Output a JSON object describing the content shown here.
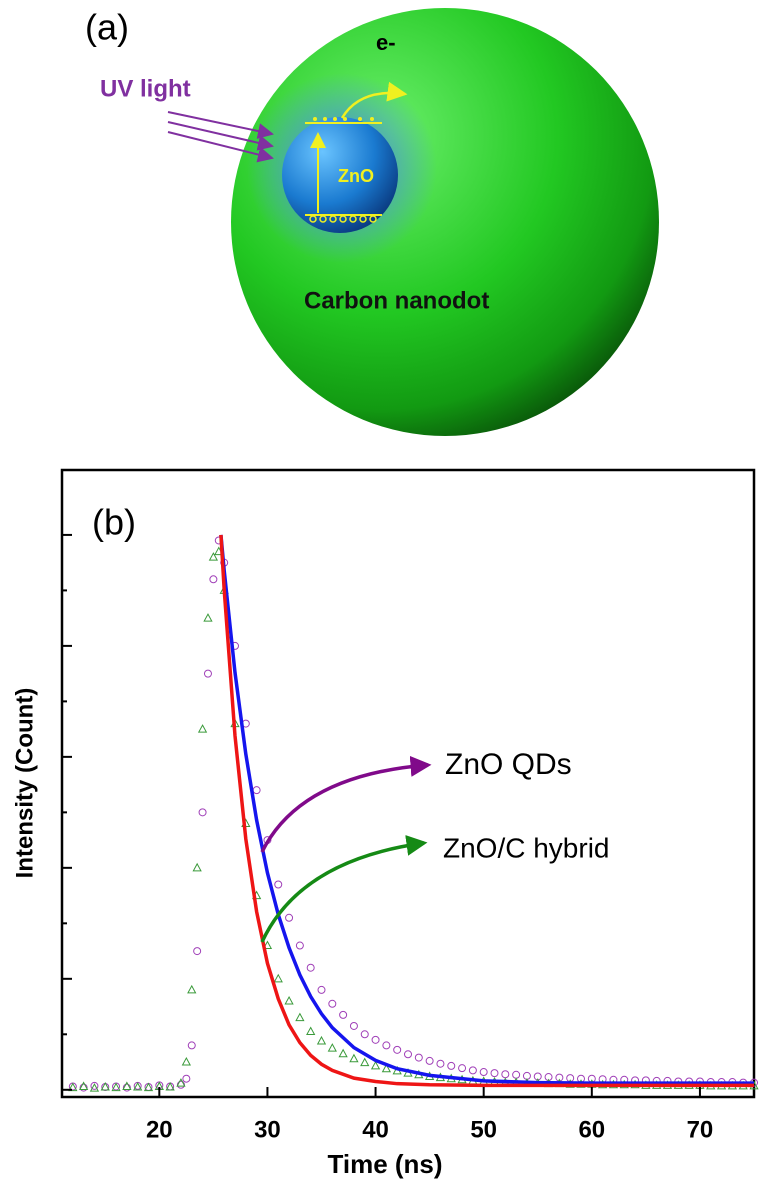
{
  "diagram": {
    "panel_label": "(a)",
    "light_label": "UV light",
    "electron_label": "e-",
    "core_label": "ZnO",
    "shell_label": "Carbon nanodot"
  },
  "chart_data": {
    "type": "scatter",
    "panel_label": "(b)",
    "x_label": "Time (ns)",
    "y_label": "Intensity (Count)",
    "xlim": [
      11,
      75
    ],
    "xticks": [
      20,
      30,
      40,
      50,
      60,
      70
    ],
    "ylim": [
      -0.013,
      1.117
    ],
    "yticks": [
      0,
      0.1,
      0.2,
      0.3,
      0.4,
      0.5,
      0.6,
      0.7,
      0.8,
      0.9,
      1
    ],
    "ytick_labels": false,
    "annotations": [
      {
        "text": "ZnO QDs",
        "color": "#800a8a"
      },
      {
        "text": "ZnO/C hybrid",
        "color": "#158a15"
      }
    ],
    "series": [
      {
        "marker": "circle",
        "color": "#a040b8",
        "x": [
          12,
          13,
          14,
          15,
          16,
          17,
          18,
          19,
          20,
          21,
          22,
          22.5,
          23,
          23.5,
          24,
          24.5,
          25,
          25.5,
          26,
          27,
          28,
          29,
          30,
          31,
          32,
          33,
          34,
          35,
          36,
          37,
          38,
          39,
          40,
          41,
          42,
          43,
          44,
          45,
          46,
          47,
          48,
          49,
          50,
          51,
          52,
          53,
          54,
          55,
          56,
          57,
          58,
          59,
          60,
          61,
          62,
          63,
          64,
          65,
          66,
          67,
          68,
          69,
          70,
          71,
          72,
          73,
          74,
          75
        ],
        "values": [
          0.006,
          0.004,
          0.007,
          0.005,
          0.006,
          0.004,
          0.007,
          0.005,
          0.008,
          0.006,
          0.009,
          0.02,
          0.08,
          0.25,
          0.5,
          0.75,
          0.92,
          0.99,
          0.95,
          0.8,
          0.66,
          0.54,
          0.45,
          0.37,
          0.31,
          0.26,
          0.22,
          0.18,
          0.155,
          0.135,
          0.115,
          0.1,
          0.09,
          0.08,
          0.072,
          0.064,
          0.058,
          0.052,
          0.047,
          0.043,
          0.039,
          0.035,
          0.032,
          0.03,
          0.028,
          0.027,
          0.025,
          0.024,
          0.023,
          0.022,
          0.021,
          0.02,
          0.02,
          0.019,
          0.018,
          0.018,
          0.017,
          0.017,
          0.016,
          0.016,
          0.015,
          0.015,
          0.015,
          0.014,
          0.014,
          0.014,
          0.013,
          0.013
        ]
      },
      {
        "marker": "triangle",
        "color": "#3a9a3a",
        "x": [
          12,
          13,
          14,
          15,
          16,
          17,
          18,
          19,
          20,
          21,
          22,
          22.5,
          23,
          23.5,
          24,
          24.5,
          25,
          25.5,
          26,
          27,
          28,
          29,
          30,
          31,
          32,
          33,
          34,
          35,
          36,
          37,
          38,
          39,
          40,
          41,
          42,
          43,
          44,
          45,
          46,
          47,
          48,
          49,
          50,
          51,
          52,
          53,
          54,
          55,
          56,
          57,
          58,
          59,
          60,
          61,
          62,
          63,
          64,
          65,
          66,
          67,
          68,
          69,
          70,
          71,
          72,
          73,
          74,
          75
        ],
        "values": [
          0.004,
          0.006,
          0.003,
          0.005,
          0.004,
          0.006,
          0.005,
          0.004,
          0.006,
          0.005,
          0.012,
          0.05,
          0.18,
          0.4,
          0.65,
          0.85,
          0.96,
          0.97,
          0.9,
          0.66,
          0.48,
          0.35,
          0.26,
          0.2,
          0.16,
          0.13,
          0.105,
          0.088,
          0.075,
          0.065,
          0.056,
          0.049,
          0.043,
          0.038,
          0.034,
          0.03,
          0.027,
          0.024,
          0.022,
          0.02,
          0.018,
          0.016,
          0.015,
          0.014,
          0.013,
          0.013,
          0.012,
          0.012,
          0.011,
          0.011,
          0.01,
          0.01,
          0.01,
          0.009,
          0.009,
          0.009,
          0.009,
          0.008,
          0.008,
          0.008,
          0.008,
          0.008,
          0.008,
          0.007,
          0.007,
          0.007,
          0.007,
          0.007
        ]
      },
      {
        "type": "line",
        "color": "#1515ee",
        "x": [
          25.7,
          26,
          27,
          28,
          29,
          30,
          31,
          32,
          33,
          34,
          35,
          36,
          38,
          40,
          42,
          45,
          50,
          55,
          60,
          65,
          70,
          75
        ],
        "values": [
          1,
          0.936,
          0.752,
          0.605,
          0.486,
          0.391,
          0.316,
          0.256,
          0.207,
          0.168,
          0.137,
          0.112,
          0.076,
          0.053,
          0.038,
          0.026,
          0.016,
          0.013,
          0.012,
          0.012,
          0.012,
          0.012
        ]
      },
      {
        "type": "line",
        "color": "#ee1515",
        "x": [
          25.7,
          26,
          27,
          28,
          29,
          30,
          31,
          32,
          33,
          34,
          35,
          36,
          38,
          40,
          42,
          45,
          50,
          55,
          60,
          65,
          70,
          75
        ],
        "values": [
          1,
          0.901,
          0.638,
          0.452,
          0.321,
          0.228,
          0.164,
          0.117,
          0.085,
          0.062,
          0.046,
          0.035,
          0.021,
          0.015,
          0.011,
          0.009,
          0.008,
          0.008,
          0.008,
          0.008,
          0.008,
          0.008
        ]
      }
    ]
  }
}
